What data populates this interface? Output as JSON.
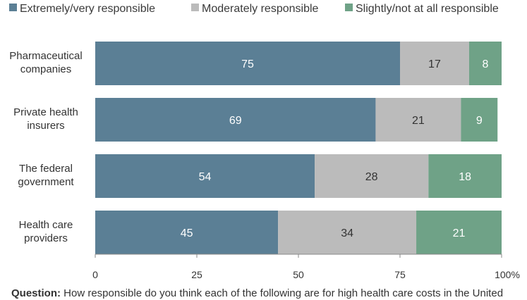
{
  "chart_data": {
    "type": "bar",
    "orientation": "horizontal",
    "stacked": true,
    "categories": [
      [
        "Pharmaceutical",
        "companies"
      ],
      [
        "Private health",
        "insurers"
      ],
      [
        "The federal",
        "government"
      ],
      [
        "Health care",
        "providers"
      ]
    ],
    "series": [
      {
        "name": "Extremely/very responsible",
        "color": "#5b7f95",
        "label_color": "#ffffff",
        "values": [
          75,
          69,
          54,
          45
        ]
      },
      {
        "name": "Moderately responsible",
        "color": "#bbbbbb",
        "label_color": "#333333",
        "values": [
          17,
          21,
          28,
          34
        ]
      },
      {
        "name": "Slightly/not at all responsible",
        "color": "#6fa287",
        "label_color": "#ffffff",
        "values": [
          8,
          9,
          18,
          21
        ]
      }
    ],
    "xlim": [
      0,
      100
    ],
    "xticks": [
      "0",
      "25",
      "50",
      "75",
      "100%"
    ],
    "xtick_values": [
      0,
      25,
      50,
      75,
      100
    ],
    "legend_position": "top",
    "grid": false
  },
  "footnote": {
    "label": "Question:",
    "text": "How responsible do you think each of the following are for high health care costs in the United"
  }
}
